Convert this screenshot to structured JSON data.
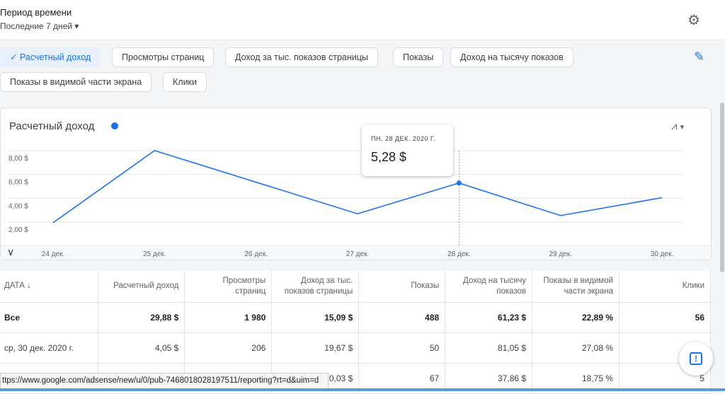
{
  "header": {
    "period_label": "Период времени",
    "period_value": "Последние 7 дней"
  },
  "chips": [
    {
      "label": "Расчетный доход",
      "selected": true
    },
    {
      "label": "Просмотры страниц",
      "selected": false
    },
    {
      "label": "Доход за тыс. показов страницы",
      "selected": false
    },
    {
      "label": "Показы",
      "selected": false
    },
    {
      "label": "Доход на тысячу показов",
      "selected": false
    },
    {
      "label": "Показы в видимой части экрана",
      "selected": false
    },
    {
      "label": "Клики",
      "selected": false
    }
  ],
  "chart_data": {
    "type": "line",
    "title": "Расчетный доход",
    "categories": [
      "24 дек.",
      "25 дек.",
      "26 дек.",
      "27 дек.",
      "28 дек.",
      "29 дек.",
      "30 дек."
    ],
    "series": [
      {
        "name": "Расчетный доход",
        "color": "#1a73e8",
        "values": [
          1.95,
          8.0,
          5.35,
          2.7,
          5.28,
          2.55,
          4.05
        ]
      }
    ],
    "yticks": [
      {
        "v": 2,
        "label": "2,00 $"
      },
      {
        "v": 4,
        "label": "4,00 $"
      },
      {
        "v": 6,
        "label": "6,00 $"
      },
      {
        "v": 8,
        "label": "8,00 $"
      }
    ],
    "ylim": [
      0,
      8.6
    ],
    "grid": true,
    "tooltip": {
      "index": 4,
      "date": "ПН, 28 ДЕК. 2020 Г.",
      "value": "5,28 $"
    }
  },
  "table": {
    "headers": [
      "ДАТА ↓",
      "Расчетный доход",
      "Просмотры страниц",
      "Доход за тыс. показов страницы",
      "Показы",
      "Доход на тысячу показов",
      "Показы в видимой части экрана",
      "Клики"
    ],
    "rows": [
      [
        "Все",
        "29,88 $",
        "1 980",
        "15,09 $",
        "488",
        "61,23 $",
        "22,89 %",
        "56"
      ],
      [
        "ср, 30 дек. 2020 г.",
        "4,05 $",
        "206",
        "19,67 $",
        "50",
        "81,05 $",
        "27,08 %",
        ""
      ],
      [
        "",
        "",
        "",
        "0,03 $",
        "67",
        "37,86 $",
        "18,75 %",
        "5"
      ]
    ]
  },
  "status_url": "ttps://www.google.com/adsense/new/u/0/pub-7468018028197511/reporting?rt=d&uim=d"
}
